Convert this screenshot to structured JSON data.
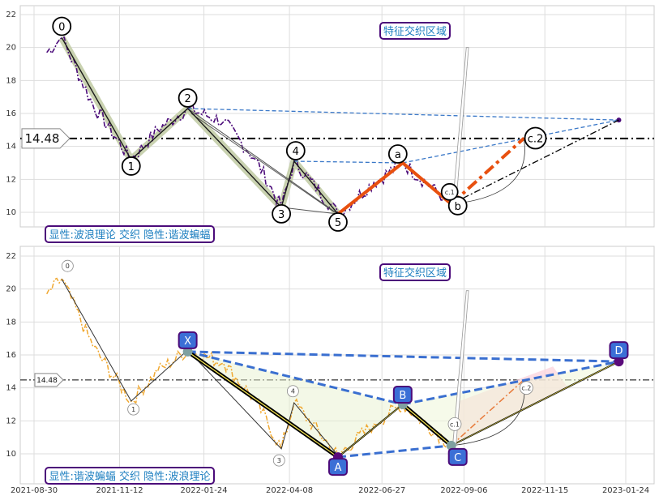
{
  "chart_data": [
    {
      "type": "line",
      "panel": "top",
      "ylim": [
        9,
        22.5
      ],
      "yticks": [
        10,
        12,
        14,
        16,
        18,
        20,
        22
      ],
      "reference_line": {
        "value": 14.48,
        "label": "14.48"
      },
      "caption": "显性:波浪理论 交织 隐性:谐波蝙蝠",
      "zone_label": "特征交织区域",
      "wave_points": [
        {
          "label": "0",
          "x": "2021-09-23",
          "y": 20.6
        },
        {
          "label": "1",
          "x": "2021-11-22",
          "y": 13.2
        },
        {
          "label": "2",
          "x": "2022-01-10",
          "y": 16.3
        },
        {
          "label": "3",
          "x": "2022-04-01",
          "y": 10.3
        },
        {
          "label": "4",
          "x": "2022-04-12",
          "y": 13.1
        },
        {
          "label": "5",
          "x": "2022-05-20",
          "y": 9.9
        },
        {
          "label": "a",
          "x": "2022-07-15",
          "y": 13.0
        },
        {
          "label": "b",
          "x": "2022-08-26",
          "y": 10.5
        },
        {
          "label": "c.1",
          "x": "2022-08-26",
          "y": 10.5
        },
        {
          "label": "c.2",
          "x": "2022-10-28",
          "y": 14.5
        }
      ]
    },
    {
      "type": "line",
      "panel": "bottom",
      "ylim": [
        9,
        22.5
      ],
      "yticks": [
        10,
        12,
        14,
        16,
        18,
        20,
        22
      ],
      "xticks": [
        "2021-08-30",
        "2021-11-12",
        "2022-01-24",
        "2022-04-08",
        "2022-06-27",
        "2022-09-06",
        "2022-11-15",
        "2023-01-24"
      ],
      "reference_line": {
        "value": 14.48,
        "label": "14.48"
      },
      "caption": "显性:谐波蝙蝠 交织 隐性:波浪理论",
      "zone_label": "特征交织区域",
      "harmonic_points": [
        {
          "label": "X",
          "x": "2022-01-10",
          "y": 16.2
        },
        {
          "label": "A",
          "x": "2022-05-20",
          "y": 9.8
        },
        {
          "label": "B",
          "x": "2022-07-15",
          "y": 13.0
        },
        {
          "label": "C",
          "x": "2022-08-26",
          "y": 10.5
        },
        {
          "label": "D",
          "x": "2023-01-18",
          "y": 15.6
        }
      ],
      "wave_labels": [
        "0",
        "1",
        "3",
        "4",
        "c.1",
        "c.2"
      ]
    }
  ]
}
